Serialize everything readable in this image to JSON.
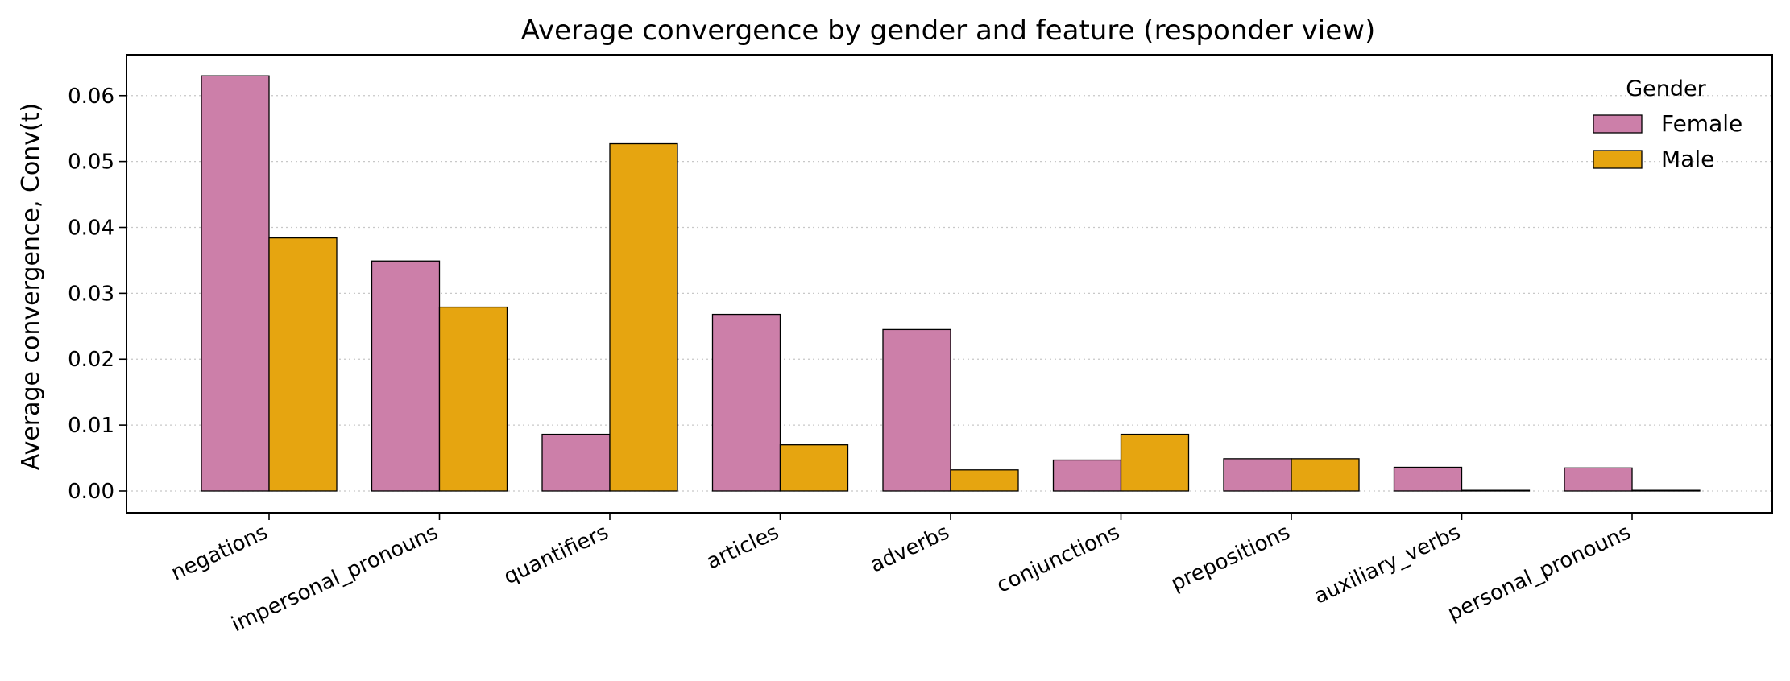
{
  "chart_data": {
    "type": "bar",
    "title": "Average convergence by gender and feature (responder view)",
    "xlabel": "",
    "ylabel": "Average convergence, Conv(t)",
    "categories": [
      "negations",
      "impersonal_pronouns",
      "quantifiers",
      "articles",
      "adverbs",
      "conjunctions",
      "prepositions",
      "auxiliary_verbs",
      "personal_pronouns"
    ],
    "series": [
      {
        "name": "Female",
        "color": "#cc7fa9",
        "values": [
          0.063,
          0.0349,
          0.0086,
          0.0268,
          0.0245,
          0.0047,
          0.0049,
          0.0036,
          0.0035
        ]
      },
      {
        "name": "Male",
        "color": "#e6a510",
        "values": [
          0.0384,
          0.0279,
          0.0527,
          0.007,
          0.0032,
          0.0086,
          0.0049,
          0.0001,
          0.0001
        ]
      }
    ],
    "ylim": [
      -0.0033,
      0.0662
    ],
    "yticks": [
      "0.00",
      "0.01",
      "0.02",
      "0.03",
      "0.04",
      "0.05",
      "0.06"
    ],
    "grid": "y-dotted",
    "legend": {
      "title": "Gender",
      "position": "top-right"
    }
  }
}
